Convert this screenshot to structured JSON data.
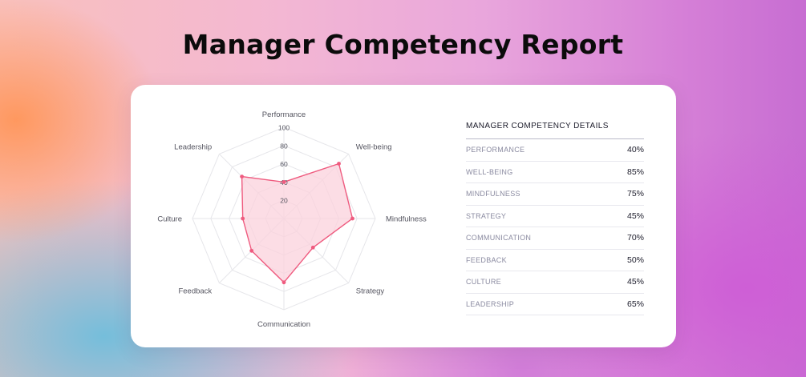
{
  "page": {
    "title": "Manager Competency Report"
  },
  "details": {
    "title": "MANAGER COMPETENCY DETAILS",
    "rows": [
      {
        "label": "PERFORMANCE",
        "value": "40%"
      },
      {
        "label": "WELL-BEING",
        "value": "85%"
      },
      {
        "label": "MINDFULNESS",
        "value": "75%"
      },
      {
        "label": "STRATEGY",
        "value": "45%"
      },
      {
        "label": "COMMUNICATION",
        "value": "70%"
      },
      {
        "label": "FEEDBACK",
        "value": "50%"
      },
      {
        "label": "CULTURE",
        "value": "45%"
      },
      {
        "label": "LEADERSHIP",
        "value": "65%"
      }
    ]
  },
  "chart_data": {
    "type": "radar",
    "categories": [
      "Performance",
      "Well-being",
      "Mindfulness",
      "Strategy",
      "Communication",
      "Feedback",
      "Culture",
      "Leadership"
    ],
    "values": [
      40,
      85,
      75,
      45,
      70,
      50,
      45,
      65
    ],
    "rlim": [
      0,
      100
    ],
    "tick_labels": [
      "20",
      "40",
      "60",
      "80",
      "100"
    ],
    "grid": true,
    "legend": "none",
    "colors": {
      "line": "#ef5b7f",
      "fill": "#fbd1dc",
      "grid": "#e6e6ea",
      "label": "#555560"
    }
  }
}
